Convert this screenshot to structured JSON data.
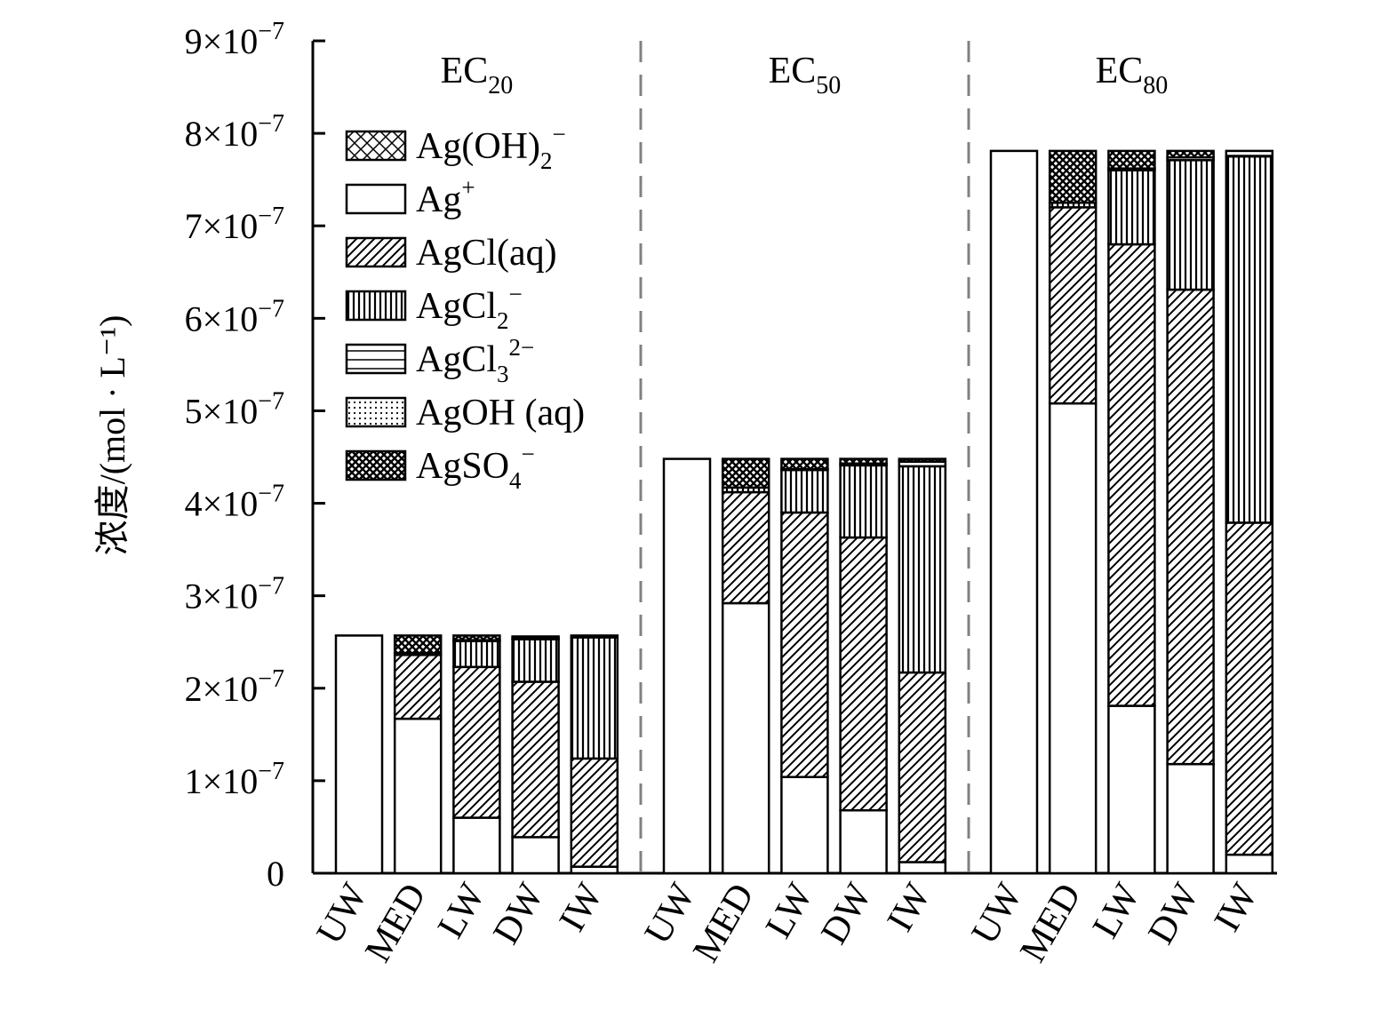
{
  "chart_data": {
    "type": "bar",
    "stacked": true,
    "title": "",
    "ylabel": "浓度/(mol · L⁻¹)",
    "ylim": [
      0,
      9e-07
    ],
    "yticks": [
      {
        "value": 0,
        "mant": "0",
        "exp": ""
      },
      {
        "value": 1e-07,
        "mant": "1×10",
        "exp": "−7"
      },
      {
        "value": 2e-07,
        "mant": "2×10",
        "exp": "−7"
      },
      {
        "value": 3e-07,
        "mant": "3×10",
        "exp": "−7"
      },
      {
        "value": 4e-07,
        "mant": "4×10",
        "exp": "−7"
      },
      {
        "value": 5e-07,
        "mant": "5×10",
        "exp": "−7"
      },
      {
        "value": 6e-07,
        "mant": "6×10",
        "exp": "−7"
      },
      {
        "value": 7e-07,
        "mant": "7×10",
        "exp": "−7"
      },
      {
        "value": 8e-07,
        "mant": "8×10",
        "exp": "−7"
      },
      {
        "value": 9e-07,
        "mant": "9×10",
        "exp": "−7"
      }
    ],
    "groups": [
      {
        "label": "EC",
        "sub": "20"
      },
      {
        "label": "EC",
        "sub": "50"
      },
      {
        "label": "EC",
        "sub": "80"
      }
    ],
    "categories": [
      "UW",
      "MED",
      "LW",
      "DW",
      "IW"
    ],
    "legend_position": "top-left",
    "series": [
      {
        "name": "Ag(OH)",
        "sub": "2",
        "sup": "−",
        "pattern": "diamond",
        "values": [
          [
            0,
            0,
            0,
            0,
            0
          ],
          [
            0,
            0,
            0,
            0,
            0
          ],
          [
            0,
            0,
            0,
            0,
            0
          ]
        ]
      },
      {
        "name": "Ag",
        "sub": "",
        "sup": "+",
        "pattern": "none",
        "values": [
          [
            2.57e-07,
            1.67e-07,
            6e-08,
            3.9e-08,
            7e-09
          ],
          [
            4.48e-07,
            2.92e-07,
            1.04e-07,
            6.8e-08,
            1.2e-08
          ],
          [
            7.81e-07,
            5.08e-07,
            1.81e-07,
            1.18e-07,
            2e-08
          ]
        ]
      },
      {
        "name": "AgCl(aq)",
        "sub": "",
        "sup": "",
        "pattern": "diag",
        "values": [
          [
            0,
            6.9e-08,
            1.63e-07,
            1.68e-07,
            1.17e-07
          ],
          [
            0,
            1.2e-07,
            2.86e-07,
            2.95e-07,
            2.05e-07
          ],
          [
            0,
            2.12e-07,
            4.99e-07,
            5.13e-07,
            3.59e-07
          ]
        ]
      },
      {
        "name": "AgCl",
        "sub": "2",
        "sup": "−",
        "pattern": "vert",
        "values": [
          [
            0,
            2e-09,
            2.8e-08,
            4.6e-08,
            1.31e-07
          ],
          [
            0,
            5e-09,
            4.6e-08,
            7.8e-08,
            2.23e-07
          ],
          [
            0,
            5e-09,
            8e-08,
            1.4e-07,
            3.96e-07
          ]
        ]
      },
      {
        "name": "AgCl",
        "sub": "3",
        "sup": "2−",
        "pattern": "horiz",
        "values": [
          [
            0,
            0,
            1e-09,
            1e-09,
            2e-09
          ],
          [
            0,
            0,
            1e-09,
            2e-09,
            5e-09
          ],
          [
            0,
            0,
            2e-09,
            3e-09,
            6e-09
          ]
        ]
      },
      {
        "name": "AgOH (aq)",
        "sub": "",
        "sup": "",
        "pattern": "dots",
        "values": [
          [
            0,
            0,
            0,
            0,
            0
          ],
          [
            0,
            0,
            0,
            0,
            0
          ],
          [
            0,
            0,
            0,
            0,
            0
          ]
        ]
      },
      {
        "name": "AgSO",
        "sub": "4",
        "sup": "−",
        "pattern": "cross",
        "values": [
          [
            0,
            1.9e-08,
            5e-09,
            2e-09,
            0
          ],
          [
            0,
            3.1e-08,
            1.1e-08,
            5e-09,
            3e-09
          ],
          [
            0,
            5.6e-08,
            1.9e-08,
            7e-09,
            0
          ]
        ]
      }
    ]
  }
}
